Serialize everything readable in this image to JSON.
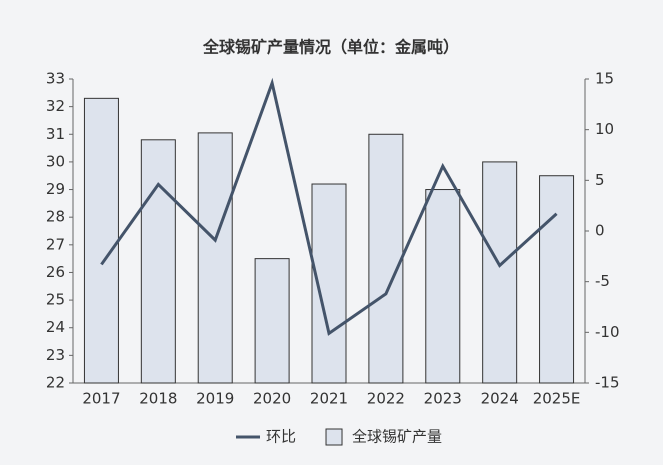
{
  "chart_data": {
    "type": "bar_line",
    "title": "全球锡矿产量情况（单位：金属吨）",
    "categories": [
      "2017",
      "2018",
      "2019",
      "2020",
      "2021",
      "2022",
      "2023",
      "2024",
      "2025E"
    ],
    "series": [
      {
        "name": "全球锡矿产量",
        "type": "bar",
        "color": "#dde3ed",
        "values": [
          32.3,
          30.8,
          31.05,
          26.5,
          29.2,
          31.0,
          29.0,
          30.0,
          29.5
        ]
      },
      {
        "name": "环比",
        "type": "line",
        "axis": "y2",
        "color": "#44546a",
        "values": [
          -3.3,
          4.6,
          -0.9,
          14.6,
          -10.1,
          -6.2,
          6.4,
          -3.4,
          1.7
        ]
      }
    ],
    "ylim": [
      22,
      33
    ],
    "yticks": [
      22,
      23,
      24,
      25,
      26,
      27,
      28,
      29,
      30,
      31,
      32,
      33
    ],
    "y2lim": [
      -15,
      15
    ],
    "y2ticks": [
      -15,
      -10,
      -5,
      0,
      5,
      10,
      15
    ],
    "legend": "bottom"
  }
}
